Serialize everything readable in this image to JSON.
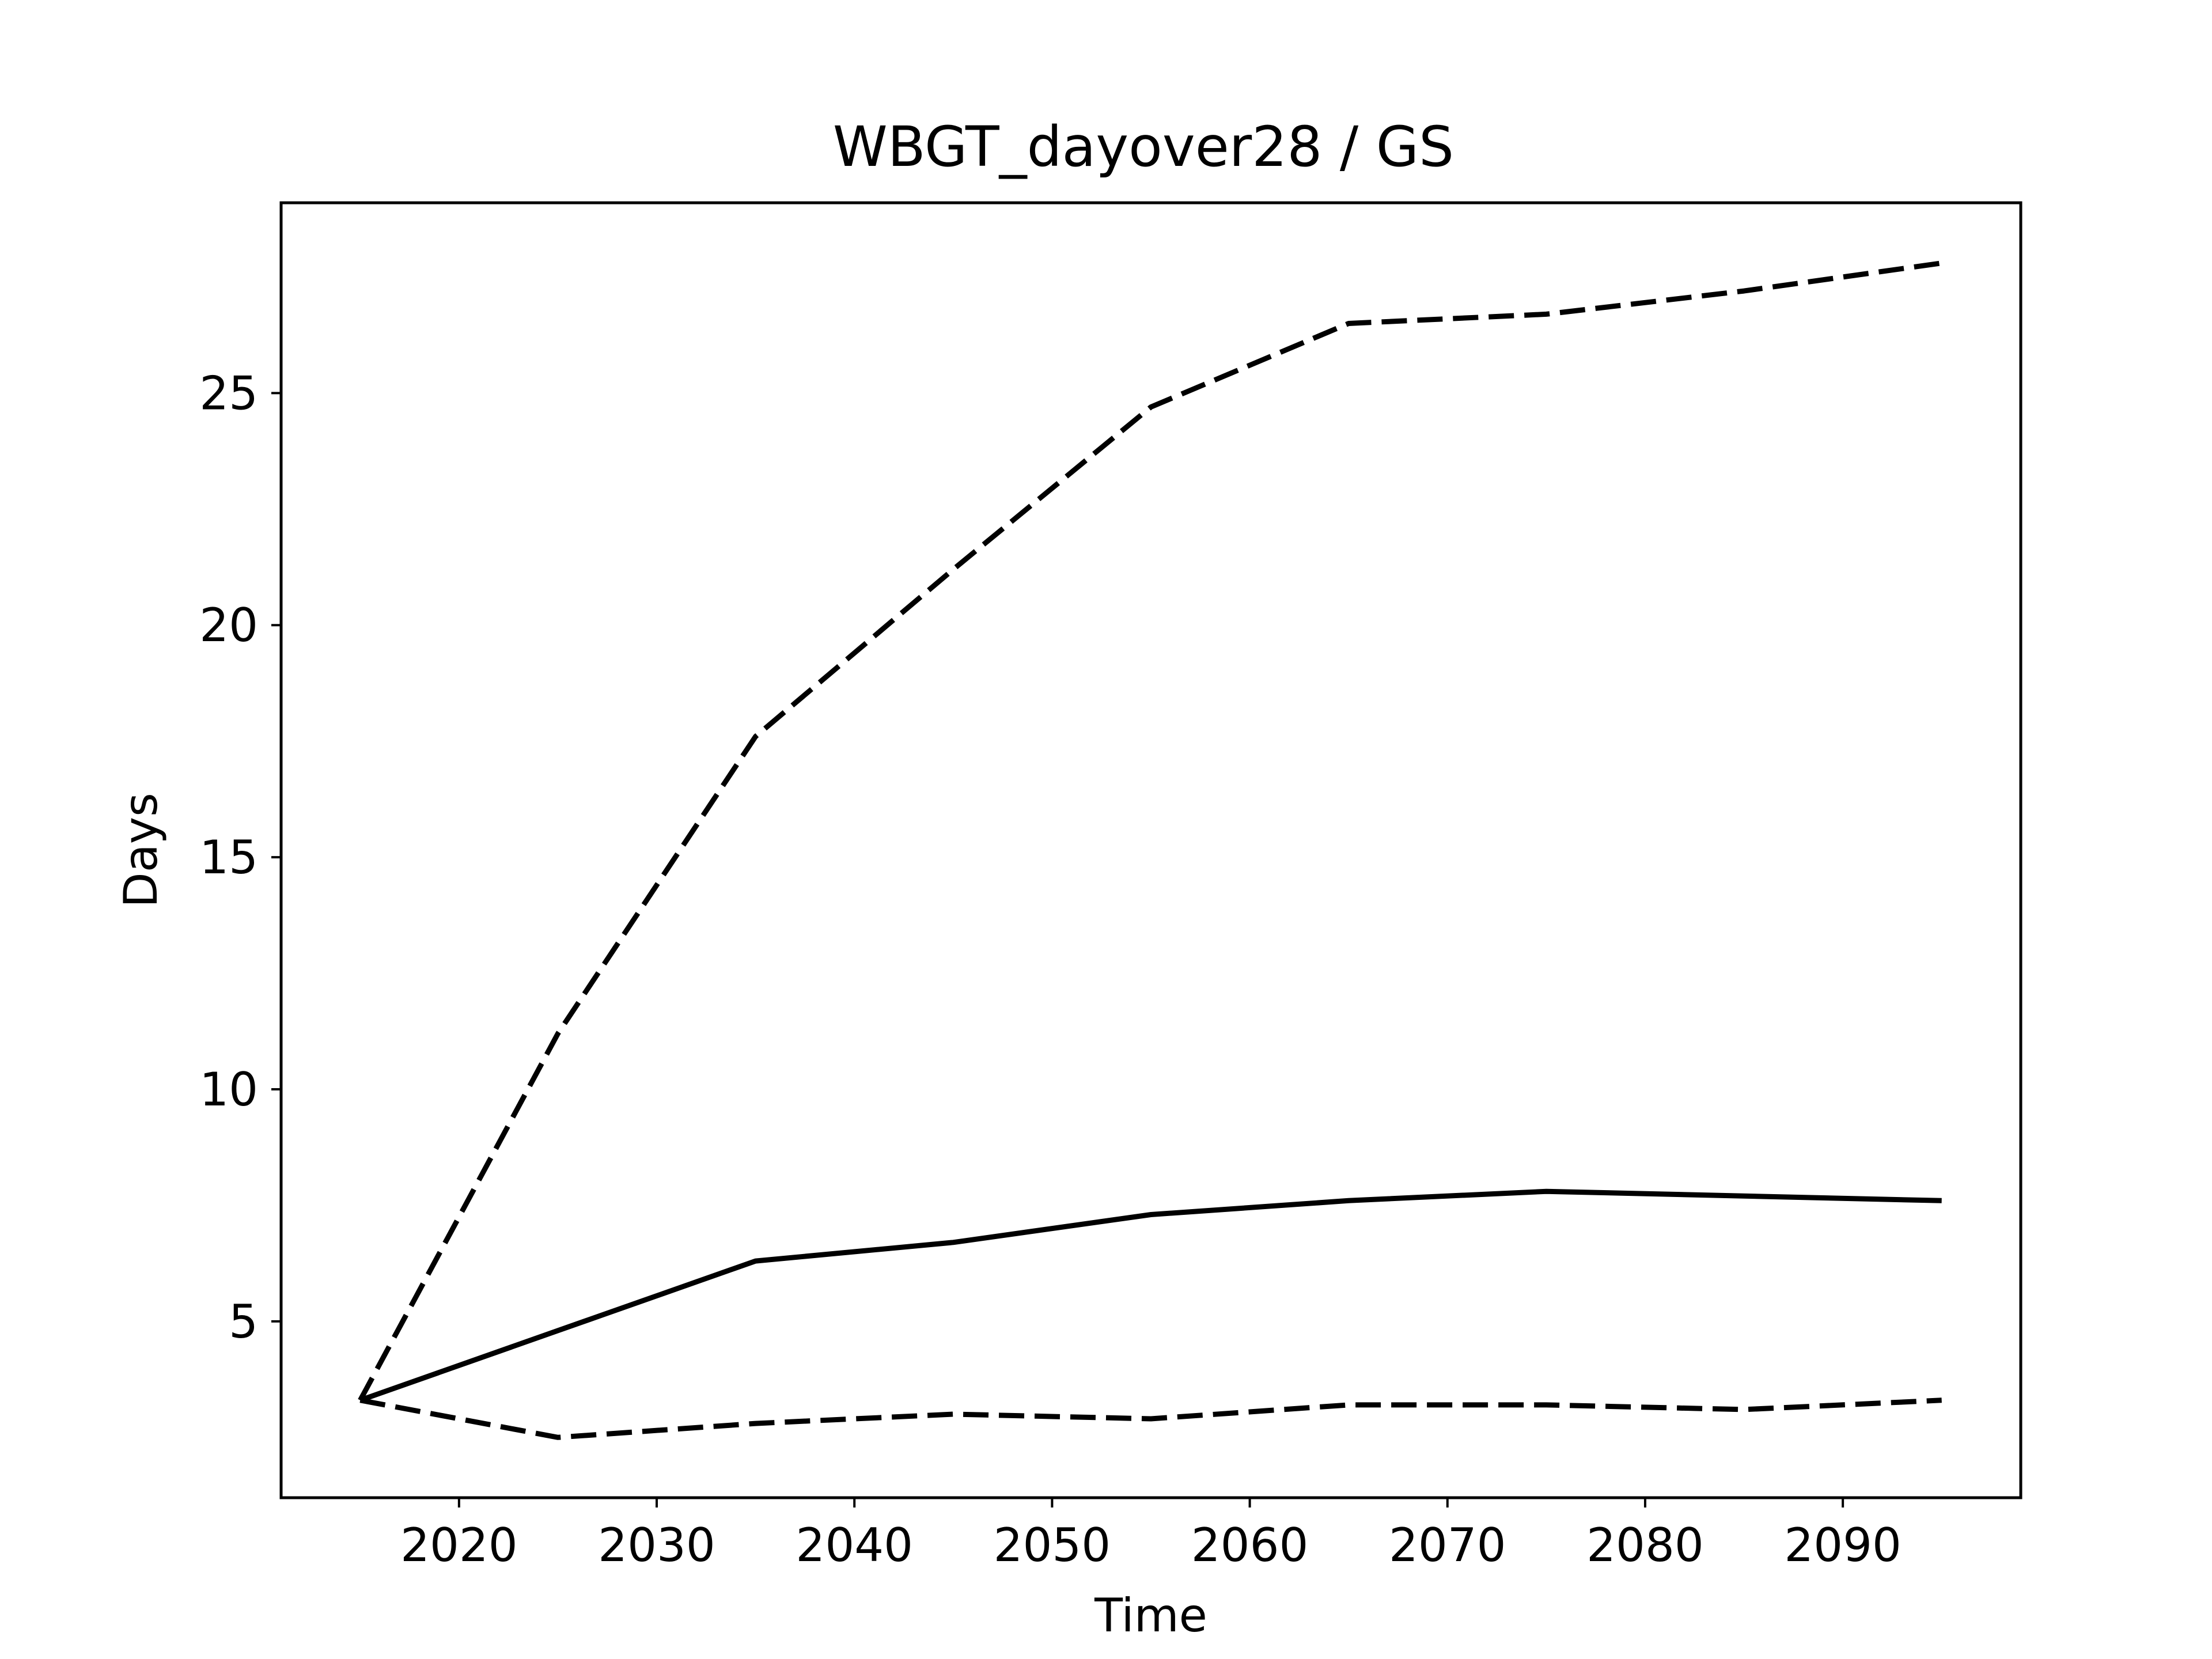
{
  "chart_data": {
    "type": "line",
    "title": "WBGT_dayover28 / GS",
    "xlabel": "Time",
    "ylabel": "Days",
    "xlim": [
      2011,
      2099
    ],
    "ylim": [
      1.2,
      29.1
    ],
    "x_ticks": [
      2020,
      2030,
      2040,
      2050,
      2060,
      2070,
      2080,
      2090
    ],
    "y_ticks": [
      5,
      10,
      15,
      20,
      25
    ],
    "x_tick_labels": [
      "2020",
      "2030",
      "2040",
      "2050",
      "2060",
      "2070",
      "2080",
      "2090"
    ],
    "y_tick_labels": [
      "5",
      "10",
      "15",
      "20",
      "25"
    ],
    "grid": false,
    "line_color": "#000000",
    "x": [
      2015,
      2025,
      2035,
      2045,
      2055,
      2065,
      2075,
      2085,
      2095
    ],
    "series": [
      {
        "style": "solid",
        "values": [
          3.3,
          4.8,
          6.3,
          6.7,
          7.3,
          7.6,
          7.8,
          7.7,
          7.6
        ]
      },
      {
        "style": "dashed",
        "values": [
          3.3,
          11.2,
          17.6,
          21.2,
          24.7,
          26.5,
          26.7,
          27.2,
          27.8
        ]
      },
      {
        "style": "dashed",
        "values": [
          3.3,
          2.5,
          2.8,
          3.0,
          2.9,
          3.2,
          3.2,
          3.1,
          3.3
        ]
      }
    ]
  }
}
